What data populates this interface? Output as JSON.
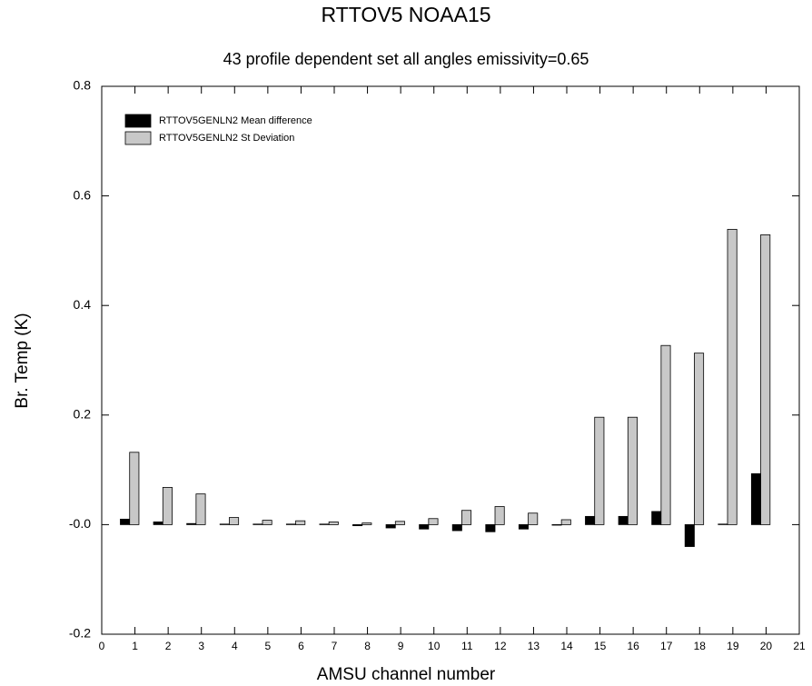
{
  "chart_data": {
    "type": "bar",
    "title": "RTTOV5 NOAA15",
    "subtitle": "43 profile dependent set all angles emissivity=0.65",
    "x_label": "AMSU channel number",
    "y_label": "Br. Temp  (K)",
    "x": [
      1,
      2,
      3,
      4,
      5,
      6,
      7,
      8,
      9,
      10,
      11,
      12,
      13,
      14,
      15,
      16,
      17,
      18,
      19,
      20
    ],
    "series": [
      {
        "name": "RTTOV5GENLN2 Mean difference",
        "color": "#000000",
        "values": [
          0.01,
          0.005,
          0.002,
          0.001,
          0.001,
          0.001,
          0.001,
          -0.002,
          -0.006,
          -0.008,
          -0.011,
          -0.013,
          -0.008,
          -0.001,
          0.015,
          0.015,
          0.024,
          -0.04,
          0.001,
          0.093
        ]
      },
      {
        "name": "RTTOV5GENLN2 St Deviation",
        "color": "#c8c8c8",
        "values": [
          0.132,
          0.068,
          0.056,
          0.013,
          0.008,
          0.007,
          0.005,
          0.003,
          0.006,
          0.011,
          0.026,
          0.033,
          0.021,
          0.009,
          0.196,
          0.196,
          0.327,
          0.313,
          0.539,
          0.529
        ]
      }
    ],
    "xlim": [
      0,
      21
    ],
    "xticks": [
      0,
      1,
      2,
      3,
      4,
      5,
      6,
      7,
      8,
      9,
      10,
      11,
      12,
      13,
      14,
      15,
      16,
      17,
      18,
      19,
      20,
      21
    ],
    "ylim": [
      -0.2,
      0.8
    ],
    "yticks": [
      -0.2,
      {
        "value": 0,
        "label": "-0.0"
      },
      0.2,
      0.4,
      0.6,
      0.8
    ],
    "legend": "upper left"
  }
}
